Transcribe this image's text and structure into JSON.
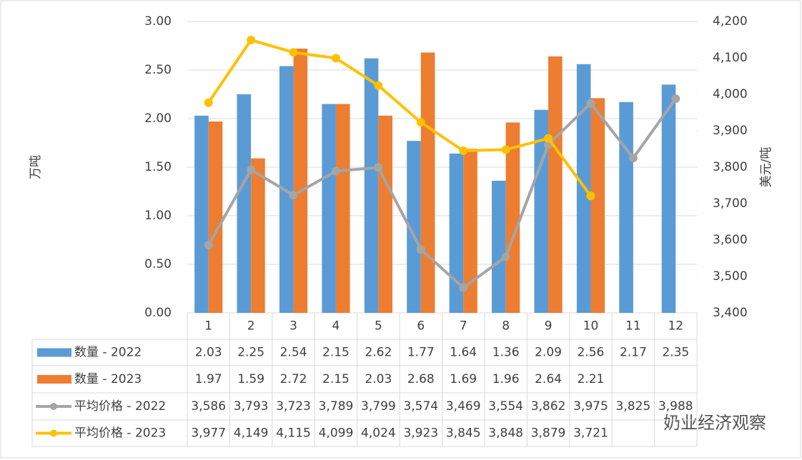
{
  "chart_data": {
    "type": "bar",
    "categories": [
      "1",
      "2",
      "3",
      "4",
      "5",
      "6",
      "7",
      "8",
      "9",
      "10",
      "11",
      "12"
    ],
    "series": [
      {
        "name": "数量 - 2022",
        "type": "bar",
        "color": "#5b9bd5",
        "values": [
          2.03,
          2.25,
          2.54,
          2.15,
          2.62,
          1.77,
          1.64,
          1.36,
          2.09,
          2.56,
          2.17,
          2.35
        ]
      },
      {
        "name": "数量 - 2023",
        "type": "bar",
        "color": "#ed7d31",
        "values": [
          1.97,
          1.59,
          2.72,
          2.15,
          2.03,
          2.68,
          1.69,
          1.96,
          2.64,
          2.21,
          null,
          null
        ]
      },
      {
        "name": "平均价格 - 2022",
        "type": "line",
        "axis": "y2",
        "color": "#a5a5a5",
        "values": [
          3586,
          3793,
          3723,
          3789,
          3799,
          3574,
          3469,
          3554,
          3862,
          3975,
          3825,
          3988
        ],
        "value_labels": [
          "3,586",
          "3,793",
          "3,723",
          "3,789",
          "3,799",
          "3,574",
          "3,469",
          "3,554",
          "3,862",
          "3,975",
          "3,825",
          "3,988"
        ]
      },
      {
        "name": "平均价格 - 2023",
        "type": "line",
        "axis": "y2",
        "color": "#ffc000",
        "values": [
          3977,
          4149,
          4115,
          4099,
          4024,
          3923,
          3845,
          3848,
          3879,
          3721,
          null,
          null
        ],
        "value_labels": [
          "3,977",
          "4,149",
          "4,115",
          "4,099",
          "4,024",
          "3,923",
          "3,845",
          "3,848",
          "3,879",
          "3,721",
          null,
          null
        ]
      }
    ],
    "y_label": "万吨",
    "y2_label": "美元/吨",
    "ylim": [
      0,
      3
    ],
    "yticks": [
      {
        "value": 0,
        "label": "0.00"
      },
      {
        "value": 0.5,
        "label": "0.50"
      },
      {
        "value": 1,
        "label": "1.00"
      },
      {
        "value": 1.5,
        "label": "1.50"
      },
      {
        "value": 2,
        "label": "2.00"
      },
      {
        "value": 2.5,
        "label": "2.50"
      },
      {
        "value": 3,
        "label": "3.00"
      }
    ],
    "y2lim": [
      3400,
      4200
    ],
    "y2ticks": [
      {
        "value": 3400,
        "label": "3,400"
      },
      {
        "value": 3500,
        "label": "3,500"
      },
      {
        "value": 3600,
        "label": "3,600"
      },
      {
        "value": 3700,
        "label": "3,700"
      },
      {
        "value": 3800,
        "label": "3,800"
      },
      {
        "value": 3900,
        "label": "3,900"
      },
      {
        "value": 4000,
        "label": "4,000"
      },
      {
        "value": 4100,
        "label": "4,100"
      },
      {
        "value": 4200,
        "label": "4,200"
      }
    ],
    "grid": true,
    "annotation": "奶业经济观察"
  }
}
